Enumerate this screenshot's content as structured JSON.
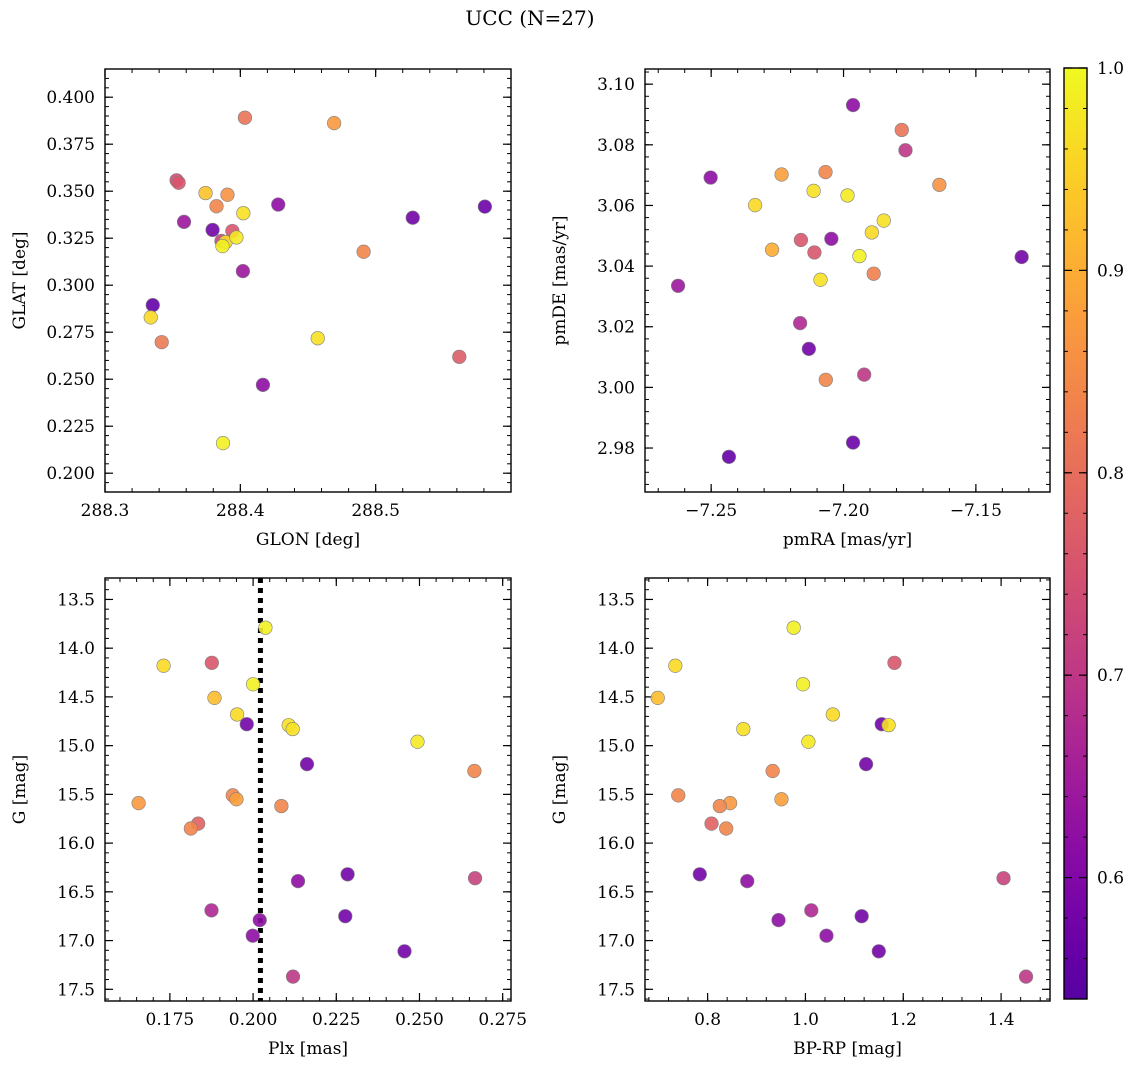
{
  "title": "UCC (N=27)",
  "colorbar": {
    "colormap": "plasma",
    "range": [
      0.54,
      1.0
    ],
    "ticks": [
      0.6,
      0.7,
      0.8,
      0.9,
      1.0
    ],
    "tick_labels": [
      "0.6",
      "0.7",
      "0.8",
      "0.9",
      "1.0"
    ]
  },
  "chart_data": [
    {
      "type": "scatter",
      "panel": "top-left",
      "xlabel": "GLON [deg]",
      "ylabel": "GLAT [deg]",
      "xlim": [
        288.3,
        288.6
      ],
      "ylim": [
        0.19,
        0.415
      ],
      "xticks": [
        288.3,
        288.4,
        288.5
      ],
      "xtick_labels": [
        "288.3",
        "288.4",
        "288.5"
      ],
      "yticks": [
        0.2,
        0.225,
        0.25,
        0.275,
        0.3,
        0.325,
        0.35,
        0.375,
        0.4
      ],
      "ytick_labels": [
        "0.200",
        "0.225",
        "0.250",
        "0.275",
        "0.300",
        "0.325",
        "0.350",
        "0.375",
        "0.400"
      ],
      "points": [
        {
          "x": 288.4034,
          "y": 0.3891,
          "c": 0.81
        },
        {
          "x": 288.4693,
          "y": 0.3862,
          "c": 0.87
        },
        {
          "x": 288.3529,
          "y": 0.3558,
          "c": 0.74
        },
        {
          "x": 288.3544,
          "y": 0.3545,
          "c": 0.76
        },
        {
          "x": 288.3743,
          "y": 0.349,
          "c": 0.93
        },
        {
          "x": 288.3905,
          "y": 0.3481,
          "c": 0.86
        },
        {
          "x": 288.428,
          "y": 0.3429,
          "c": 0.62
        },
        {
          "x": 288.3824,
          "y": 0.342,
          "c": 0.84
        },
        {
          "x": 288.5807,
          "y": 0.3418,
          "c": 0.57
        },
        {
          "x": 288.3584,
          "y": 0.3337,
          "c": 0.64
        },
        {
          "x": 288.4022,
          "y": 0.3383,
          "c": 0.97
        },
        {
          "x": 288.5274,
          "y": 0.3359,
          "c": 0.58
        },
        {
          "x": 288.3795,
          "y": 0.3294,
          "c": 0.58
        },
        {
          "x": 288.3941,
          "y": 0.3288,
          "c": 0.76
        },
        {
          "x": 288.3861,
          "y": 0.3235,
          "c": 0.72
        },
        {
          "x": 288.3891,
          "y": 0.3229,
          "c": 0.96
        },
        {
          "x": 288.3971,
          "y": 0.3254,
          "c": 0.98
        },
        {
          "x": 288.3868,
          "y": 0.3208,
          "c": 0.99
        },
        {
          "x": 288.4911,
          "y": 0.3178,
          "c": 0.84
        },
        {
          "x": 288.4019,
          "y": 0.3075,
          "c": 0.64
        },
        {
          "x": 288.3353,
          "y": 0.2894,
          "c": 0.56
        },
        {
          "x": 288.3338,
          "y": 0.2829,
          "c": 0.96
        },
        {
          "x": 288.3419,
          "y": 0.2697,
          "c": 0.82
        },
        {
          "x": 288.4572,
          "y": 0.2718,
          "c": 0.97
        },
        {
          "x": 288.5618,
          "y": 0.2619,
          "c": 0.77
        },
        {
          "x": 288.4167,
          "y": 0.247,
          "c": 0.62
        },
        {
          "x": 288.3872,
          "y": 0.216,
          "c": 0.99
        }
      ]
    },
    {
      "type": "scatter",
      "panel": "top-right",
      "xlabel": "pmRA [mas/yr]",
      "ylabel": "pmDE [mas/yr]",
      "xlim": [
        -7.275,
        -7.122
      ],
      "ylim": [
        2.9655,
        3.105
      ],
      "xticks": [
        -7.25,
        -7.2,
        -7.15
      ],
      "xtick_labels": [
        "−7.25",
        "−7.20",
        "−7.15"
      ],
      "yticks": [
        2.98,
        3.0,
        3.02,
        3.04,
        3.06,
        3.08,
        3.1
      ],
      "ytick_labels": [
        "2.98",
        "3.00",
        "3.02",
        "3.04",
        "3.06",
        "3.08",
        "3.10"
      ],
      "points": [
        {
          "x": -7.1964,
          "y": 3.0931,
          "c": 0.62
        },
        {
          "x": -7.178,
          "y": 3.0849,
          "c": 0.81
        },
        {
          "x": -7.1766,
          "y": 3.0782,
          "c": 0.7
        },
        {
          "x": -7.2068,
          "y": 3.071,
          "c": 0.84
        },
        {
          "x": -7.2234,
          "y": 3.0702,
          "c": 0.88
        },
        {
          "x": -7.2502,
          "y": 3.0692,
          "c": 0.62
        },
        {
          "x": -7.1638,
          "y": 3.0668,
          "c": 0.86
        },
        {
          "x": -7.2113,
          "y": 3.0648,
          "c": 0.97
        },
        {
          "x": -7.1985,
          "y": 3.0633,
          "c": 0.98
        },
        {
          "x": -7.2334,
          "y": 3.0601,
          "c": 0.96
        },
        {
          "x": -7.1848,
          "y": 3.055,
          "c": 0.97
        },
        {
          "x": -7.1893,
          "y": 3.0511,
          "c": 0.96
        },
        {
          "x": -7.2046,
          "y": 3.049,
          "c": 0.62
        },
        {
          "x": -7.2161,
          "y": 3.0486,
          "c": 0.76
        },
        {
          "x": -7.227,
          "y": 3.0454,
          "c": 0.9
        },
        {
          "x": -7.211,
          "y": 3.0445,
          "c": 0.76
        },
        {
          "x": -7.194,
          "y": 3.0433,
          "c": 0.99
        },
        {
          "x": -7.1327,
          "y": 3.043,
          "c": 0.58
        },
        {
          "x": -7.1886,
          "y": 3.0375,
          "c": 0.83
        },
        {
          "x": -7.2087,
          "y": 3.0355,
          "c": 0.97
        },
        {
          "x": -7.2625,
          "y": 3.0335,
          "c": 0.64
        },
        {
          "x": -7.2164,
          "y": 3.0212,
          "c": 0.67
        },
        {
          "x": -7.2131,
          "y": 3.0127,
          "c": 0.58
        },
        {
          "x": -7.1922,
          "y": 3.0042,
          "c": 0.7
        },
        {
          "x": -7.2067,
          "y": 3.0025,
          "c": 0.84
        },
        {
          "x": -7.1964,
          "y": 2.9818,
          "c": 0.57
        },
        {
          "x": -7.2433,
          "y": 2.9771,
          "c": 0.56
        }
      ]
    },
    {
      "type": "scatter",
      "panel": "bottom-left",
      "xlabel": "Plx [mas]",
      "ylabel": "G [mag]",
      "xlim": [
        0.1555,
        0.2775
      ],
      "ylim": [
        17.62,
        13.28
      ],
      "y_inverted": true,
      "xticks": [
        0.175,
        0.2,
        0.225,
        0.25,
        0.275
      ],
      "xtick_labels": [
        "0.175",
        "0.200",
        "0.225",
        "0.250",
        "0.275"
      ],
      "yticks": [
        13.5,
        14.0,
        14.5,
        15.0,
        15.5,
        16.0,
        16.5,
        17.0,
        17.5
      ],
      "ytick_labels": [
        "13.5",
        "14.0",
        "14.5",
        "15.0",
        "15.5",
        "16.0",
        "16.5",
        "17.0",
        "17.5"
      ],
      "vline": {
        "x": 0.2022,
        "style": "dotted"
      },
      "points": [
        {
          "x": 0.2037,
          "y": 13.79,
          "c": 0.99
        },
        {
          "x": 0.1731,
          "y": 14.18,
          "c": 0.96
        },
        {
          "x": 0.1876,
          "y": 14.15,
          "c": 0.76
        },
        {
          "x": 0.2,
          "y": 14.37,
          "c": 0.99
        },
        {
          "x": 0.1884,
          "y": 14.51,
          "c": 0.92
        },
        {
          "x": 0.1952,
          "y": 14.68,
          "c": 0.96
        },
        {
          "x": 0.1981,
          "y": 14.78,
          "c": 0.58
        },
        {
          "x": 0.2107,
          "y": 14.79,
          "c": 0.97
        },
        {
          "x": 0.2119,
          "y": 14.83,
          "c": 0.97
        },
        {
          "x": 0.2494,
          "y": 14.96,
          "c": 0.98
        },
        {
          "x": 0.2162,
          "y": 15.19,
          "c": 0.58
        },
        {
          "x": 0.2665,
          "y": 15.26,
          "c": 0.84
        },
        {
          "x": 0.1939,
          "y": 15.51,
          "c": 0.84
        },
        {
          "x": 0.195,
          "y": 15.55,
          "c": 0.88
        },
        {
          "x": 0.1656,
          "y": 15.59,
          "c": 0.87
        },
        {
          "x": 0.2085,
          "y": 15.62,
          "c": 0.84
        },
        {
          "x": 0.1835,
          "y": 15.8,
          "c": 0.78
        },
        {
          "x": 0.1813,
          "y": 15.85,
          "c": 0.84
        },
        {
          "x": 0.2284,
          "y": 16.32,
          "c": 0.58
        },
        {
          "x": 0.2667,
          "y": 16.36,
          "c": 0.72
        },
        {
          "x": 0.2135,
          "y": 16.39,
          "c": 0.62
        },
        {
          "x": 0.1875,
          "y": 16.69,
          "c": 0.67
        },
        {
          "x": 0.2277,
          "y": 16.75,
          "c": 0.58
        },
        {
          "x": 0.202,
          "y": 16.79,
          "c": 0.62
        },
        {
          "x": 0.1999,
          "y": 16.95,
          "c": 0.62
        },
        {
          "x": 0.2455,
          "y": 17.11,
          "c": 0.58
        },
        {
          "x": 0.212,
          "y": 17.37,
          "c": 0.7
        }
      ]
    },
    {
      "type": "scatter",
      "panel": "bottom-right",
      "xlabel": "BP-RP [mag]",
      "ylabel": "G [mag]",
      "xlim": [
        0.672,
        1.5
      ],
      "ylim": [
        17.62,
        13.28
      ],
      "y_inverted": true,
      "xticks": [
        0.8,
        1.0,
        1.2,
        1.4
      ],
      "xtick_labels": [
        "0.8",
        "1.0",
        "1.2",
        "1.4"
      ],
      "yticks": [
        13.5,
        14.0,
        14.5,
        15.0,
        15.5,
        16.0,
        16.5,
        17.0,
        17.5
      ],
      "ytick_labels": [
        "13.5",
        "14.0",
        "14.5",
        "15.0",
        "15.5",
        "16.0",
        "16.5",
        "17.0",
        "17.5"
      ],
      "points": [
        {
          "x": 0.976,
          "y": 13.79,
          "c": 0.99
        },
        {
          "x": 0.734,
          "y": 14.18,
          "c": 0.96
        },
        {
          "x": 1.182,
          "y": 14.15,
          "c": 0.76
        },
        {
          "x": 0.995,
          "y": 14.37,
          "c": 0.99
        },
        {
          "x": 0.698,
          "y": 14.51,
          "c": 0.92
        },
        {
          "x": 1.056,
          "y": 14.68,
          "c": 0.96
        },
        {
          "x": 1.156,
          "y": 14.78,
          "c": 0.58
        },
        {
          "x": 1.17,
          "y": 14.79,
          "c": 0.97
        },
        {
          "x": 0.873,
          "y": 14.83,
          "c": 0.97
        },
        {
          "x": 1.006,
          "y": 14.96,
          "c": 0.98
        },
        {
          "x": 1.124,
          "y": 15.19,
          "c": 0.58
        },
        {
          "x": 0.933,
          "y": 15.26,
          "c": 0.84
        },
        {
          "x": 0.74,
          "y": 15.51,
          "c": 0.84
        },
        {
          "x": 0.951,
          "y": 15.55,
          "c": 0.88
        },
        {
          "x": 0.846,
          "y": 15.59,
          "c": 0.87
        },
        {
          "x": 0.825,
          "y": 15.62,
          "c": 0.84
        },
        {
          "x": 0.808,
          "y": 15.8,
          "c": 0.78
        },
        {
          "x": 0.838,
          "y": 15.85,
          "c": 0.84
        },
        {
          "x": 0.784,
          "y": 16.32,
          "c": 0.58
        },
        {
          "x": 1.405,
          "y": 16.36,
          "c": 0.72
        },
        {
          "x": 0.881,
          "y": 16.39,
          "c": 0.62
        },
        {
          "x": 1.012,
          "y": 16.69,
          "c": 0.67
        },
        {
          "x": 1.115,
          "y": 16.75,
          "c": 0.58
        },
        {
          "x": 0.945,
          "y": 16.79,
          "c": 0.62
        },
        {
          "x": 1.043,
          "y": 16.95,
          "c": 0.62
        },
        {
          "x": 1.15,
          "y": 17.11,
          "c": 0.58
        },
        {
          "x": 1.451,
          "y": 17.37,
          "c": 0.7
        }
      ]
    }
  ]
}
